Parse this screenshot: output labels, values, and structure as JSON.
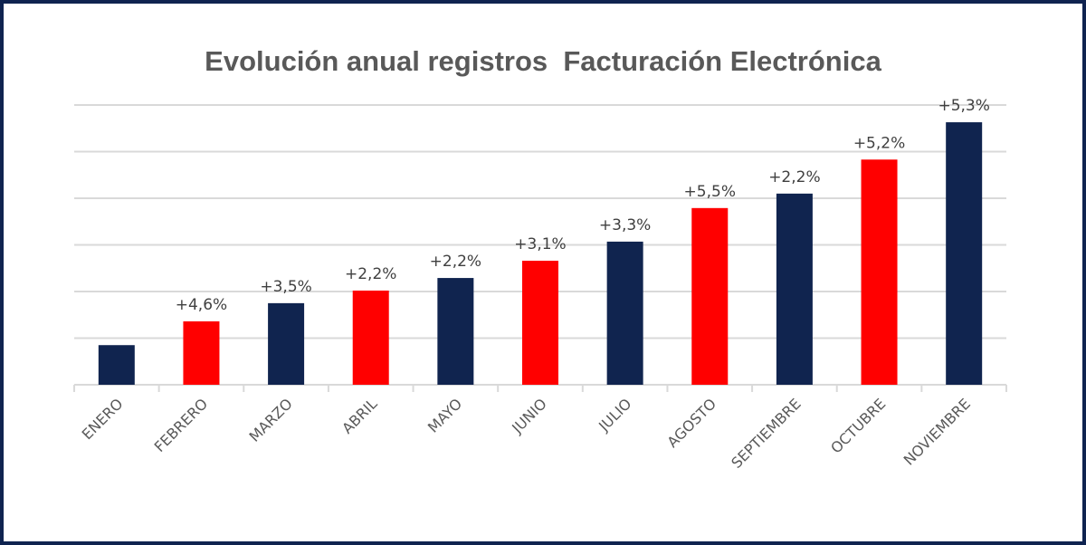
{
  "chart_data": {
    "type": "bar",
    "title": "Evolución anual registros  Facturación Electrónica",
    "xlabel": "",
    "ylabel": "",
    "categories": [
      "ENERO",
      "FEBRERO",
      "MARZO",
      "ABRIL",
      "MAYO",
      "JUNIO",
      "JULIO",
      "AGOSTO",
      "SEPTIEMBRE",
      "OCTUBRE",
      "NOVIEMBRE"
    ],
    "values": [
      0.85,
      1.36,
      1.75,
      2.02,
      2.29,
      2.66,
      3.07,
      3.79,
      4.1,
      4.83,
      5.63
    ],
    "data_labels": [
      "",
      "+4,6%",
      "+3,5%",
      "+2,2%",
      "+2,2%",
      "+3,1%",
      "+3,3%",
      "+5,5%",
      "+2,2%",
      "+5,2%",
      "+5,3%"
    ],
    "bar_colors": [
      "#10244f",
      "#ff0000",
      "#10244f",
      "#ff0000",
      "#10244f",
      "#ff0000",
      "#10244f",
      "#ff0000",
      "#10244f",
      "#ff0000",
      "#10244f"
    ],
    "ylim": [
      0,
      6
    ],
    "grid": true,
    "legend": "none"
  }
}
